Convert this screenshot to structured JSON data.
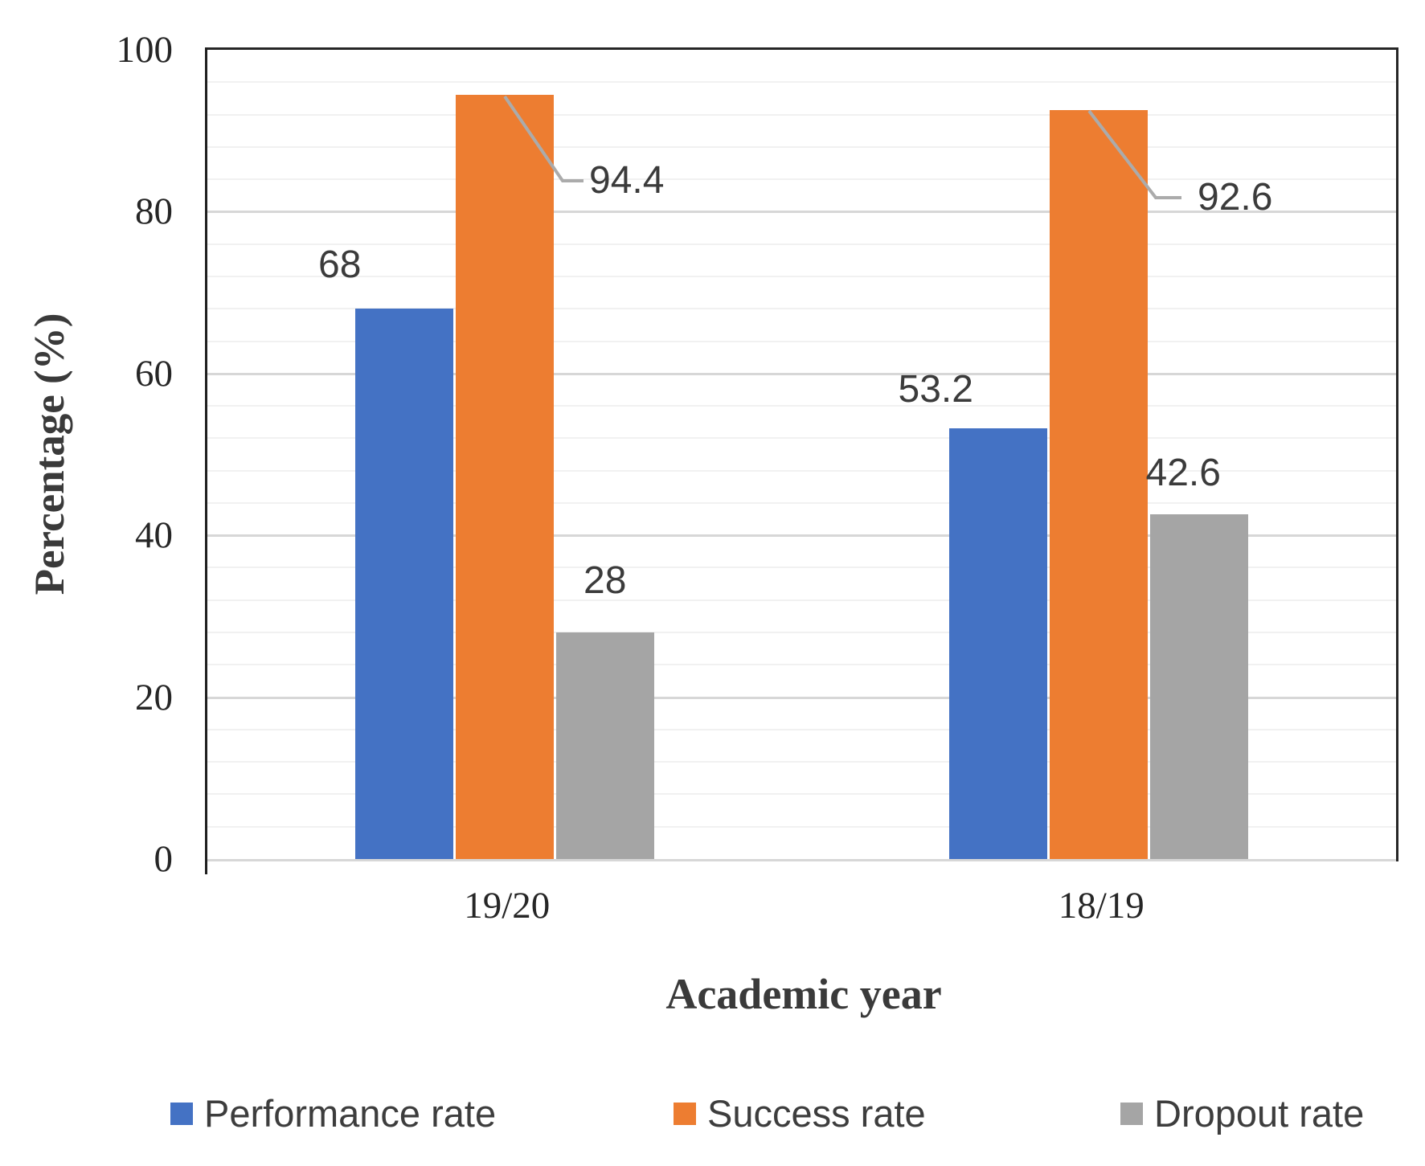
{
  "chart_data": {
    "type": "bar",
    "title": "",
    "xlabel": "Academic year",
    "ylabel": "Percentage (%)",
    "categories": [
      "19/20",
      "18/19"
    ],
    "series": [
      {
        "name": "Performance rate",
        "color": "#4472C4",
        "values": [
          68,
          53.2
        ],
        "labels": [
          "68",
          "53.2"
        ]
      },
      {
        "name": "Success rate",
        "color": "#ED7D31",
        "values": [
          94.4,
          92.6
        ],
        "labels": [
          "94.4",
          "92.6"
        ]
      },
      {
        "name": "Dropout rate",
        "color": "#A5A5A5",
        "values": [
          28,
          42.6
        ],
        "labels": [
          "28",
          "42.6"
        ]
      }
    ],
    "ylim": [
      0,
      100
    ],
    "y_ticks": [
      "0",
      "20",
      "40",
      "60",
      "80",
      "100"
    ],
    "y_minor_unit": 4,
    "grid": "horizontal major+minor",
    "legend_position": "bottom",
    "leader_line_color": "#ababab",
    "gridline_major_color": "#d7d7d7",
    "gridline_minor_color": "#f1f1f1"
  }
}
